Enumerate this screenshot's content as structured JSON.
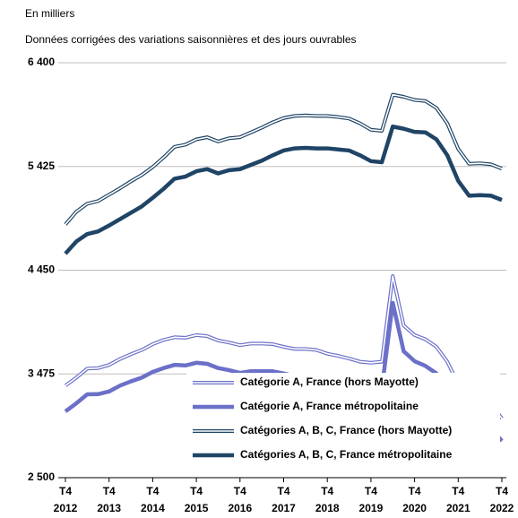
{
  "chart_data": {
    "type": "line",
    "title": "En milliers",
    "subtitle": "Données corrigées des variations saisonnières et des jours ouvrables",
    "categories": [
      "T4 2012",
      null,
      null,
      null,
      "T4 2013",
      null,
      null,
      null,
      "T4 2014",
      null,
      null,
      null,
      "T4 2015",
      null,
      null,
      null,
      "T4 2016",
      null,
      null,
      null,
      "T4 2017",
      null,
      null,
      null,
      "T4 2018",
      null,
      null,
      null,
      "T4 2019",
      null,
      null,
      null,
      "T4 2020",
      null,
      null,
      null,
      "T4 2021",
      null,
      null,
      null,
      "T4 2022"
    ],
    "ylim": [
      2500,
      6400
    ],
    "yticks": [
      {
        "value": 2500,
        "label": "2 500"
      },
      {
        "value": 3475,
        "label": "3 475"
      },
      {
        "value": 4450,
        "label": "4 450"
      },
      {
        "value": 5425,
        "label": "5 425"
      },
      {
        "value": 6400,
        "label": "6 400"
      }
    ],
    "grid": true,
    "legend": "lower right",
    "series": [
      {
        "name": "Catégorie A, France (hors Mayotte)",
        "color": "#6b70c8",
        "style": "outline",
        "values": [
          3365,
          3440,
          3525,
          3530,
          3560,
          3615,
          3660,
          3700,
          3755,
          3795,
          3820,
          3815,
          3840,
          3830,
          3790,
          3770,
          3745,
          3760,
          3760,
          3755,
          3730,
          3710,
          3710,
          3700,
          3665,
          3645,
          3620,
          3590,
          3580,
          3590,
          4395,
          3930,
          3840,
          3800,
          3730,
          3590,
          3380,
          3210,
          3200,
          3195,
          3056
        ]
      },
      {
        "name": "Catégorie A, France métropolitaine",
        "color": "#6b70c8",
        "style": "thick",
        "values": [
          3123,
          3199,
          3283,
          3285,
          3310,
          3365,
          3405,
          3440,
          3494,
          3530,
          3560,
          3555,
          3580,
          3570,
          3530,
          3510,
          3485,
          3500,
          3500,
          3500,
          3480,
          3455,
          3455,
          3450,
          3410,
          3395,
          3370,
          3340,
          3335,
          3340,
          4143,
          3688,
          3595,
          3550,
          3480,
          3350,
          3140,
          2960,
          2963,
          2960,
          2845
        ]
      },
      {
        "name": "Catégories A, B, C, France (hors Mayotte)",
        "color": "#1f4466",
        "style": "outline",
        "values": [
          4880,
          5000,
          5075,
          5100,
          5160,
          5220,
          5285,
          5345,
          5420,
          5510,
          5610,
          5630,
          5680,
          5700,
          5660,
          5690,
          5700,
          5745,
          5790,
          5840,
          5880,
          5900,
          5905,
          5900,
          5900,
          5890,
          5875,
          5830,
          5770,
          5760,
          6100,
          6080,
          6050,
          6040,
          5975,
          5830,
          5590,
          5450,
          5455,
          5445,
          5405
        ]
      },
      {
        "name": "Catégories A, B, C, France métropolitaine",
        "color": "#1f4466",
        "style": "thick",
        "values": [
          4606,
          4720,
          4790,
          4815,
          4870,
          4930,
          4990,
          5050,
          5130,
          5215,
          5310,
          5330,
          5380,
          5400,
          5360,
          5390,
          5400,
          5440,
          5480,
          5530,
          5575,
          5595,
          5600,
          5595,
          5595,
          5585,
          5575,
          5530,
          5475,
          5465,
          5800,
          5780,
          5750,
          5745,
          5680,
          5530,
          5290,
          5150,
          5155,
          5150,
          5110
        ]
      }
    ]
  }
}
